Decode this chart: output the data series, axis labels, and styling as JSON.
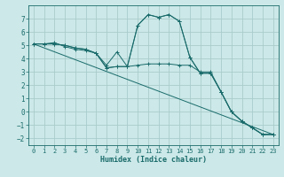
{
  "background_color": "#cce8e8",
  "grid_color": "#aacccc",
  "line_color": "#1a6b6b",
  "xlabel": "Humidex (Indice chaleur)",
  "ylim": [
    -2.5,
    8.0
  ],
  "xlim": [
    -0.5,
    23.5
  ],
  "xticks": [
    0,
    1,
    2,
    3,
    4,
    5,
    6,
    7,
    8,
    9,
    10,
    11,
    12,
    13,
    14,
    15,
    16,
    17,
    18,
    19,
    20,
    21,
    22,
    23
  ],
  "yticks": [
    -2,
    -1,
    0,
    1,
    2,
    3,
    4,
    5,
    6,
    7
  ],
  "series": [
    {
      "x": [
        0,
        1,
        2,
        3,
        4,
        5,
        6,
        7,
        8,
        9,
        10,
        11,
        12,
        13,
        14,
        15,
        16,
        17,
        18,
        19,
        20,
        21,
        22,
        23
      ],
      "y": [
        5.1,
        5.1,
        5.2,
        4.9,
        4.7,
        4.6,
        4.4,
        3.5,
        4.5,
        3.4,
        6.5,
        7.3,
        7.1,
        7.3,
        6.8,
        4.1,
        2.9,
        2.9,
        1.5,
        0.0,
        -0.7,
        -1.2,
        -1.7,
        -1.7
      ],
      "marker": true
    },
    {
      "x": [
        0,
        1,
        2,
        3,
        4,
        5,
        6,
        7,
        8,
        9,
        10,
        11,
        12,
        13,
        14,
        15,
        16,
        17,
        18,
        19,
        20,
        21,
        22,
        23
      ],
      "y": [
        5.1,
        5.1,
        5.1,
        5.0,
        4.8,
        4.7,
        4.4,
        3.3,
        3.4,
        3.4,
        6.5,
        7.3,
        7.1,
        7.3,
        6.8,
        4.1,
        2.9,
        2.9,
        1.5,
        0.0,
        -0.7,
        -1.2,
        -1.7,
        -1.7
      ],
      "marker": true
    },
    {
      "x": [
        0,
        1,
        2,
        3,
        4,
        5,
        6,
        7,
        8,
        9,
        10,
        11,
        12,
        13,
        14,
        15,
        16,
        17,
        18,
        19,
        20,
        21,
        22,
        23
      ],
      "y": [
        5.1,
        5.1,
        5.1,
        5.0,
        4.8,
        4.7,
        4.4,
        3.3,
        3.4,
        3.4,
        3.5,
        3.6,
        3.6,
        3.6,
        3.5,
        3.5,
        3.0,
        3.0,
        1.5,
        0.0,
        -0.7,
        -1.2,
        -1.7,
        -1.7
      ],
      "marker": true
    },
    {
      "x": [
        0,
        23
      ],
      "y": [
        5.1,
        -1.7
      ],
      "marker": false
    }
  ]
}
